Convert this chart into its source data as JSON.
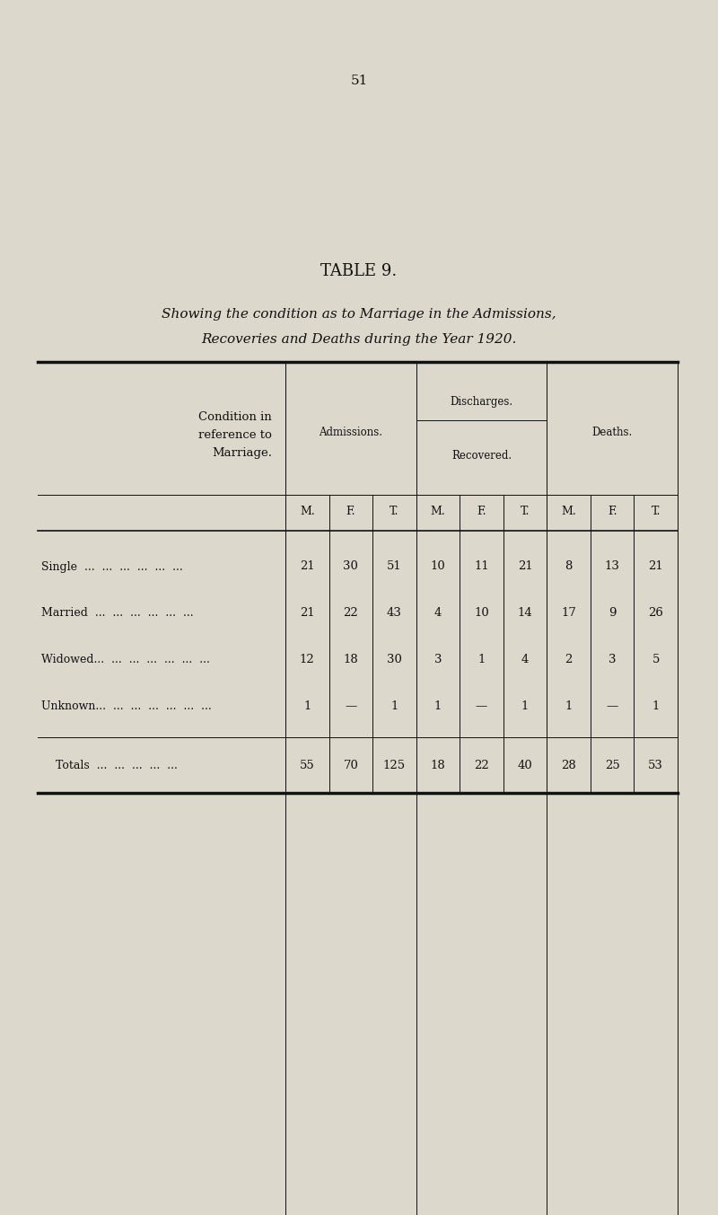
{
  "page_number": "51",
  "title": "TABLE 9.",
  "subtitle_line1": "Showing the condition as to Marriage in the Admissions,",
  "subtitle_line2": "Recoveries and Deaths during the Year 1920.",
  "bg_color": "#ddd8cc",
  "header_col0": "Condition in\nreference to\nMarriage.",
  "header_admissions": "Admissions.",
  "header_discharges": "Discharges.",
  "header_recovered": "Recovered.",
  "header_deaths": "Deaths.",
  "col_headers": [
    "M.",
    "F.",
    "T.",
    "M.",
    "F.",
    "T.",
    "M.",
    "F.",
    "T."
  ],
  "rows": [
    {
      "label": "Single",
      "dots": "  ...  ...  ...  ...  ...  ...",
      "values": [
        "21",
        "30",
        "51",
        "10",
        "11",
        "21",
        "8",
        "13",
        "21"
      ]
    },
    {
      "label": "Married",
      "dots": "  ...  ...  ...  ...  ...  ...",
      "values": [
        "21",
        "22",
        "43",
        "4",
        "10",
        "14",
        "17",
        "9",
        "26"
      ]
    },
    {
      "label": "Widowed...",
      "dots": "  ...  ...  ...  ...  ...  ...",
      "values": [
        "12",
        "18",
        "30",
        "3",
        "1",
        "4",
        "2",
        "3",
        "5"
      ]
    },
    {
      "label": "Unknown...",
      "dots": "  ...  ...  ...  ...  ...  ...",
      "values": [
        "1",
        "—",
        "1",
        "1",
        "—",
        "1",
        "1",
        "—",
        "1"
      ]
    }
  ],
  "totals_label": "Totals",
  "totals_dots": "  ...  ...  ...  ...  ...",
  "totals_values": [
    "55",
    "70",
    "125",
    "18",
    "22",
    "40",
    "28",
    "25",
    "53"
  ],
  "text_color": "#111111"
}
